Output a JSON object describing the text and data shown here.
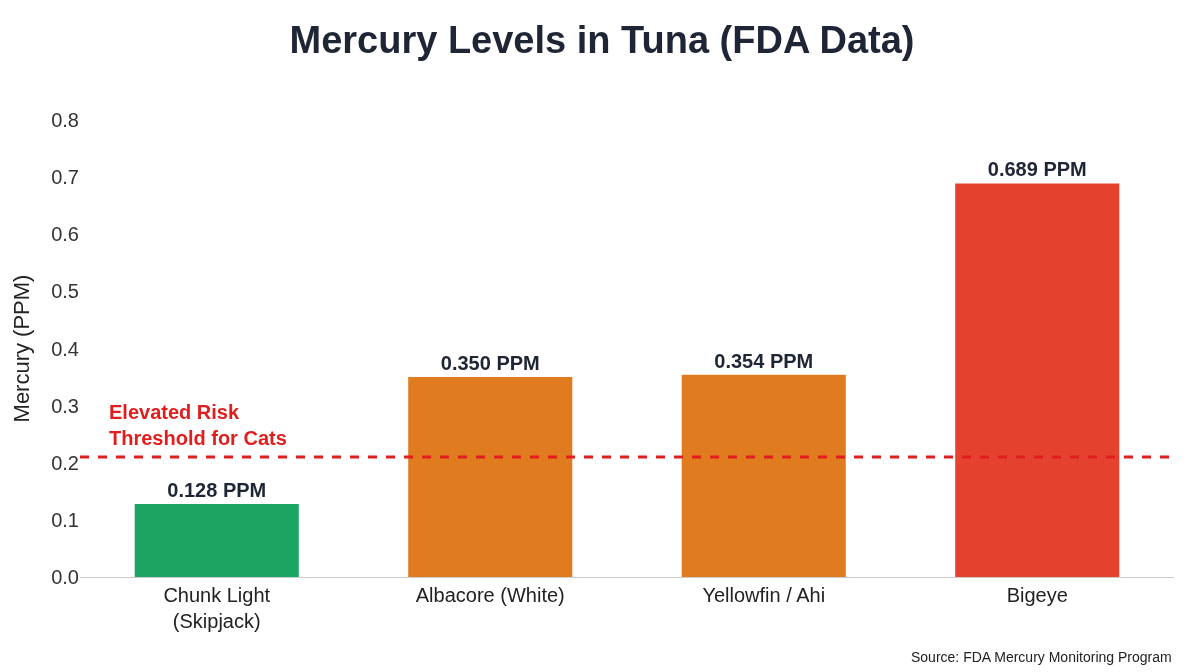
{
  "chart_data": {
    "type": "bar",
    "title": "Mercury Levels in Tuna (FDA Data)",
    "ylabel": "Mercury (PPM)",
    "categories": [
      "Chunk Light\n(Skipjack)",
      "Albacore (White)",
      "Yellowfin / Ahi",
      "Bigeye"
    ],
    "values": [
      0.128,
      0.35,
      0.354,
      0.689
    ],
    "colors": [
      "#1ba462",
      "#e07b20",
      "#e07b20",
      "#e4422f"
    ],
    "value_labels": [
      "0.128 PPM",
      "0.350 PPM",
      "0.354 PPM",
      "0.689 PPM"
    ],
    "ylim": [
      0,
      0.8
    ],
    "yticks": [
      {
        "value": 0,
        "label": "0.0"
      },
      0.1,
      0.2,
      0.3,
      0.4,
      0.5,
      0.6,
      0.7,
      0.8
    ],
    "ref_lines": [
      {
        "axis": "y",
        "value": 0.21,
        "label": "Elevated Risk\nThreshold for Cats",
        "color": "#e01e1e",
        "line_style": "dashed"
      }
    ],
    "annotations": [
      "Source: FDA Mercury Monitoring Program"
    ]
  }
}
